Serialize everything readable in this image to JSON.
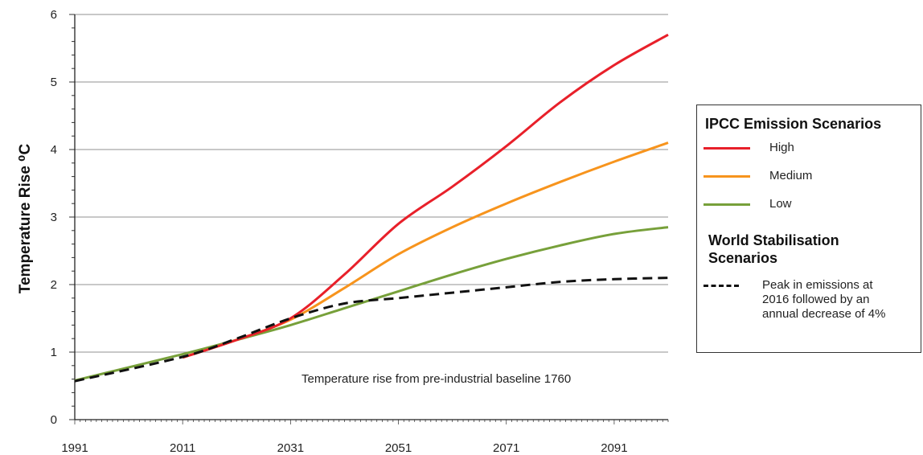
{
  "chart_data": {
    "type": "line",
    "ylabel": "Temperature Rise ⁰C",
    "xlabel": "",
    "xlim": [
      1991,
      2101
    ],
    "ylim": [
      0,
      6
    ],
    "x_ticks": [
      1991,
      2011,
      2031,
      2051,
      2071,
      2091
    ],
    "y_ticks": [
      0,
      1,
      2,
      3,
      4,
      5,
      6
    ],
    "grid": "horizontal",
    "annotation": "Temperature rise from pre-industrial baseline 1760",
    "legend_position": "right",
    "legend_groups": [
      {
        "title": "IPCC Emission Scenarios",
        "series_indices": [
          0,
          1,
          2
        ]
      },
      {
        "title": "World Stabilisation Scenarios",
        "series_indices": [
          3
        ]
      }
    ],
    "series": [
      {
        "name": "High",
        "color": "#e8202a",
        "style": "solid",
        "x": [
          2011,
          2021,
          2031,
          2041,
          2051,
          2061,
          2071,
          2081,
          2091,
          2101
        ],
        "y": [
          0.92,
          1.18,
          1.5,
          2.15,
          2.9,
          3.45,
          4.05,
          4.7,
          5.25,
          5.7
        ]
      },
      {
        "name": "Medium",
        "color": "#f7941d",
        "style": "solid",
        "x": [
          2011,
          2021,
          2031,
          2041,
          2051,
          2061,
          2071,
          2081,
          2091,
          2101
        ],
        "y": [
          0.92,
          1.18,
          1.48,
          1.95,
          2.45,
          2.85,
          3.2,
          3.52,
          3.82,
          4.1
        ]
      },
      {
        "name": "Low",
        "color": "#77a03a",
        "style": "solid",
        "x": [
          1991,
          2011,
          2021,
          2031,
          2041,
          2051,
          2061,
          2071,
          2081,
          2091,
          2101
        ],
        "y": [
          0.58,
          0.97,
          1.18,
          1.4,
          1.65,
          1.9,
          2.15,
          2.38,
          2.58,
          2.75,
          2.85
        ]
      },
      {
        "name": "Peak in emissions at 2016 followed by an annual decrease of 4%",
        "color": "#111111",
        "style": "dashed",
        "x": [
          1991,
          2011,
          2021,
          2031,
          2041,
          2051,
          2061,
          2071,
          2081,
          2091,
          2101
        ],
        "y": [
          0.57,
          0.93,
          1.2,
          1.5,
          1.72,
          1.8,
          1.88,
          1.96,
          2.04,
          2.08,
          2.1
        ]
      }
    ]
  }
}
